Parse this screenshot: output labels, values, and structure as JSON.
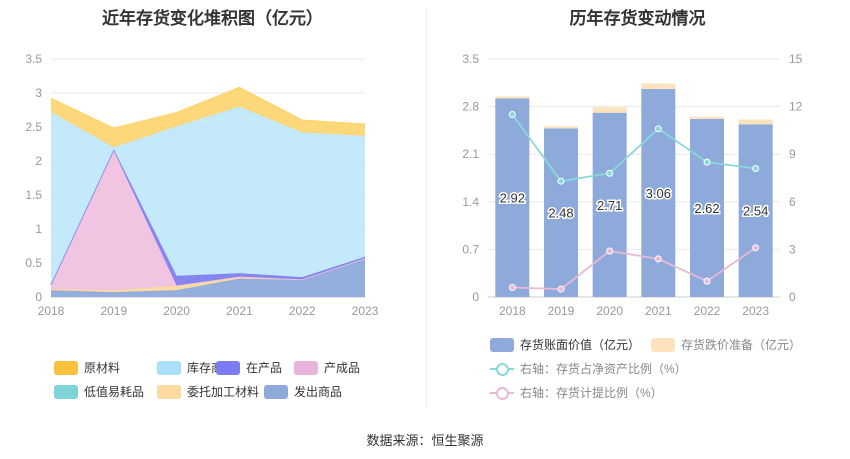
{
  "left_title": "近年存货变化堆积图（亿元）",
  "right_title": "历年存货变动情况",
  "source": "数据来源：恒生聚源",
  "chart_data": [
    {
      "type": "area",
      "stacked": true,
      "title": "近年存货变化堆积图（亿元）",
      "categories": [
        "2018",
        "2019",
        "2020",
        "2021",
        "2022",
        "2023"
      ],
      "ylim": [
        0,
        3.5
      ],
      "yticks": [
        "0",
        "0.5",
        "1",
        "1.5",
        "2",
        "2.5",
        "3",
        "3.5"
      ],
      "grid": true,
      "series": [
        {
          "name": "发出商品",
          "color": "#8eaadb",
          "values": [
            0.1,
            0.07,
            0.1,
            0.27,
            0.25,
            0.57
          ]
        },
        {
          "name": "委托加工材料",
          "color": "#fcd9a0",
          "values": [
            0.02,
            0.03,
            0.07,
            0.03,
            0.01,
            0.0
          ]
        },
        {
          "name": "低值易耗品",
          "color": "#7fd4d9",
          "values": [
            0.0,
            0.0,
            0.0,
            0.0,
            0.0,
            0.0
          ]
        },
        {
          "name": "产成品",
          "color": "#f0c1e0",
          "values": [
            0.05,
            2.05,
            0.0,
            0.0,
            0.0,
            0.0
          ]
        },
        {
          "name": "在产品",
          "color": "#8080f0",
          "values": [
            0.02,
            0.02,
            0.14,
            0.05,
            0.03,
            0.02
          ]
        },
        {
          "name": "库存商品",
          "color": "#c1e8fb",
          "values": [
            2.53,
            0.03,
            2.2,
            2.45,
            2.13,
            1.78
          ]
        },
        {
          "name": "原材料",
          "color": "#fdd673",
          "values": [
            0.2,
            0.28,
            0.2,
            0.28,
            0.18,
            0.17
          ]
        }
      ],
      "legend": [
        "原材料",
        "库存商品",
        "在产品",
        "产成品",
        "低值易耗品",
        "委托加工材料",
        "发出商品"
      ],
      "legend_colors": [
        "#f9c23c",
        "#a9e1fb",
        "#7b7cf2",
        "#e8b4dc",
        "#7fd4d9",
        "#fcd9a0",
        "#8eaadb"
      ]
    },
    {
      "type": "bar",
      "title": "历年存货变动情况",
      "categories": [
        "2018",
        "2019",
        "2020",
        "2021",
        "2022",
        "2023"
      ],
      "ylim": [
        0,
        3.5
      ],
      "yticks": [
        "0",
        "0.7",
        "1.4",
        "2.1",
        "2.8",
        "3.5"
      ],
      "y2lim": [
        0,
        15
      ],
      "y2ticks": [
        "0",
        "3",
        "6",
        "9",
        "12",
        "15"
      ],
      "series": [
        {
          "name": "存货账面价值（亿元）",
          "color": "#8eaadb",
          "values": [
            2.92,
            2.48,
            2.71,
            3.06,
            2.62,
            2.54
          ],
          "labels": [
            "2.92",
            "2.48",
            "2.71",
            "3.06",
            "2.62",
            "2.54"
          ]
        },
        {
          "name": "存货跌价准备（亿元）",
          "color": "#fde3bd",
          "values": [
            0.03,
            0.03,
            0.08,
            0.08,
            0.03,
            0.07
          ]
        },
        {
          "name": "右轴：存货占净资产比例（%）",
          "color": "#8ad8dc",
          "axis": "right",
          "values": [
            11.5,
            7.3,
            7.8,
            10.6,
            8.5,
            8.1
          ]
        },
        {
          "name": "右轴：存货计提比例（%）",
          "color": "#e8b8d6",
          "axis": "right",
          "values": [
            0.6,
            0.5,
            2.9,
            2.4,
            1.0,
            3.1
          ]
        }
      ]
    }
  ]
}
